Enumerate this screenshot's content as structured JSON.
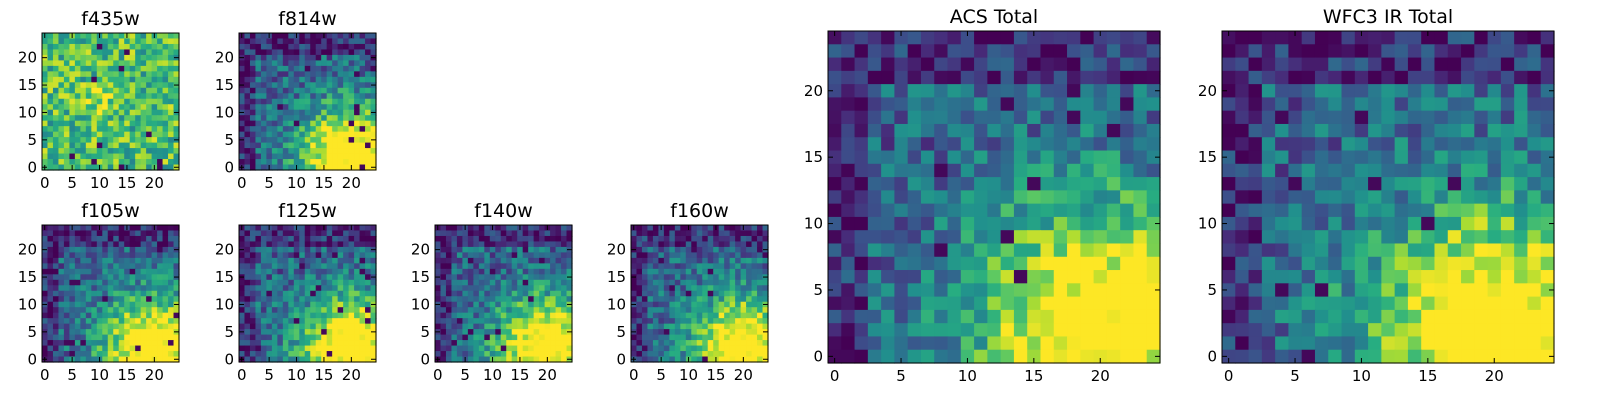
{
  "colormap": "viridis",
  "chart_data": [
    {
      "type": "heatmap",
      "title": "f435w",
      "grid": [
        25,
        25
      ],
      "xlim": [
        0,
        24
      ],
      "ylim": [
        0,
        24
      ],
      "xticks": [
        "0",
        "5",
        "10",
        "15",
        "20"
      ],
      "yticks": [
        "0",
        "5",
        "10",
        "15",
        "20"
      ],
      "bright_region": "noisy",
      "seed": 11
    },
    {
      "type": "heatmap",
      "title": "f814w",
      "grid": [
        25,
        25
      ],
      "xlim": [
        0,
        24
      ],
      "ylim": [
        0,
        24
      ],
      "xticks": [
        "0",
        "5",
        "10",
        "15",
        "20"
      ],
      "yticks": [
        "0",
        "5",
        "10",
        "15",
        "20"
      ],
      "bright_region": "lower-right",
      "seed": 22
    },
    {
      "type": "heatmap",
      "title": "f105w",
      "grid": [
        25,
        25
      ],
      "xlim": [
        0,
        24
      ],
      "ylim": [
        0,
        24
      ],
      "xticks": [
        "0",
        "5",
        "10",
        "15",
        "20"
      ],
      "yticks": [
        "0",
        "5",
        "10",
        "15",
        "20"
      ],
      "bright_region": "lower-right",
      "seed": 33
    },
    {
      "type": "heatmap",
      "title": "f125w",
      "grid": [
        25,
        25
      ],
      "xlim": [
        0,
        24
      ],
      "ylim": [
        0,
        24
      ],
      "xticks": [
        "0",
        "5",
        "10",
        "15",
        "20"
      ],
      "yticks": [
        "0",
        "5",
        "10",
        "15",
        "20"
      ],
      "bright_region": "lower-right",
      "seed": 44
    },
    {
      "type": "heatmap",
      "title": "f140w",
      "grid": [
        25,
        25
      ],
      "xlim": [
        0,
        24
      ],
      "ylim": [
        0,
        24
      ],
      "xticks": [
        "0",
        "5",
        "10",
        "15",
        "20"
      ],
      "yticks": [
        "0",
        "5",
        "10",
        "15",
        "20"
      ],
      "bright_region": "lower-right",
      "seed": 55
    },
    {
      "type": "heatmap",
      "title": "f160w",
      "grid": [
        25,
        25
      ],
      "xlim": [
        0,
        24
      ],
      "ylim": [
        0,
        24
      ],
      "xticks": [
        "0",
        "5",
        "10",
        "15",
        "20"
      ],
      "yticks": [
        "0",
        "5",
        "10",
        "15",
        "20"
      ],
      "bright_region": "lower-right",
      "seed": 66
    },
    {
      "type": "heatmap",
      "title": "ACS Total",
      "grid": [
        25,
        25
      ],
      "xlim": [
        0,
        24
      ],
      "ylim": [
        0,
        24
      ],
      "xticks": [
        "0",
        "5",
        "10",
        "15",
        "20"
      ],
      "yticks": [
        "0",
        "5",
        "10",
        "15",
        "20"
      ],
      "bright_region": "lower-right",
      "seed": 77
    },
    {
      "type": "heatmap",
      "title": "WFC3 IR Total",
      "grid": [
        25,
        25
      ],
      "xlim": [
        0,
        24
      ],
      "ylim": [
        0,
        24
      ],
      "xticks": [
        "0",
        "5",
        "10",
        "15",
        "20"
      ],
      "yticks": [
        "0",
        "5",
        "10",
        "15",
        "20"
      ],
      "bright_region": "lower-right",
      "seed": 88
    }
  ]
}
